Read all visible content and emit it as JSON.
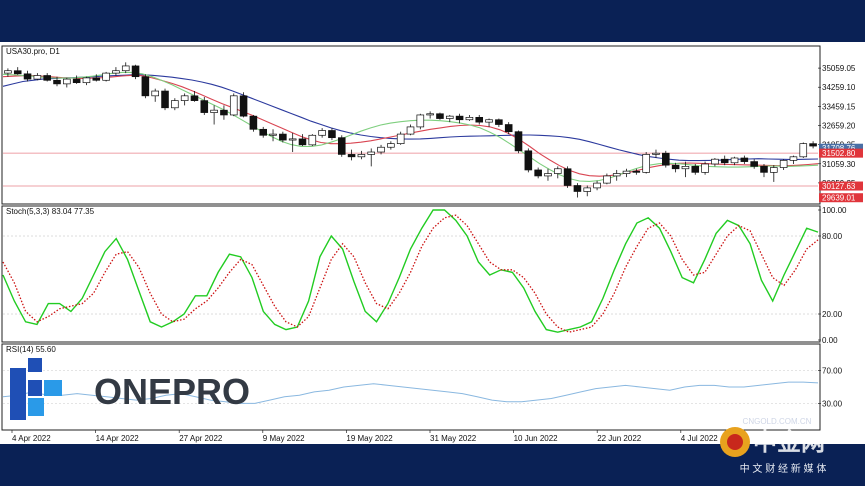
{
  "chart_data": [
    {
      "type": "candlestick",
      "title": "USA30.pro, D1",
      "x_labels": [
        "4 Apr 2022",
        "14 Apr 2022",
        "27 Apr 2022",
        "9 May 2022",
        "19 May 2022",
        "31 May 2022",
        "10 Jun 2022",
        "22 Jun 2022",
        "4 Jul 2022"
      ],
      "y_ticks": [
        35059.05,
        34259.1,
        33459.15,
        32659.2,
        31859.25,
        31059.3,
        30259.35
      ],
      "ylim": [
        29460,
        35900
      ],
      "price_tags": [
        {
          "label": "31708.76",
          "value": 31708.76,
          "color": "#4a6fa5"
        },
        {
          "label": "31502.80",
          "value": 31502.8,
          "color": "#e0353b"
        },
        {
          "label": "30127.63",
          "value": 30127.63,
          "color": "#e0353b"
        },
        {
          "label": "29639.01",
          "value": 29639.01,
          "color": "#e0353b"
        }
      ],
      "horizontal_lines": [
        31502.8,
        30127.63
      ],
      "candles": [
        {
          "o": 34850,
          "h": 35050,
          "l": 34700,
          "c": 34950
        },
        {
          "o": 34950,
          "h": 35100,
          "l": 34780,
          "c": 34820
        },
        {
          "o": 34820,
          "h": 34950,
          "l": 34500,
          "c": 34600
        },
        {
          "o": 34600,
          "h": 34850,
          "l": 34550,
          "c": 34750
        },
        {
          "o": 34750,
          "h": 34850,
          "l": 34500,
          "c": 34550
        },
        {
          "o": 34550,
          "h": 34700,
          "l": 34300,
          "c": 34400
        },
        {
          "o": 34400,
          "h": 34650,
          "l": 34250,
          "c": 34600
        },
        {
          "o": 34600,
          "h": 34750,
          "l": 34400,
          "c": 34450
        },
        {
          "o": 34450,
          "h": 34700,
          "l": 34350,
          "c": 34650
        },
        {
          "o": 34650,
          "h": 34800,
          "l": 34500,
          "c": 34550
        },
        {
          "o": 34550,
          "h": 34900,
          "l": 34500,
          "c": 34850
        },
        {
          "o": 34850,
          "h": 35100,
          "l": 34750,
          "c": 34950
        },
        {
          "o": 34950,
          "h": 35300,
          "l": 34850,
          "c": 35150
        },
        {
          "o": 35150,
          "h": 35200,
          "l": 34600,
          "c": 34700
        },
        {
          "o": 34700,
          "h": 34800,
          "l": 33800,
          "c": 33900
        },
        {
          "o": 33900,
          "h": 34200,
          "l": 33650,
          "c": 34100
        },
        {
          "o": 34100,
          "h": 34200,
          "l": 33300,
          "c": 33400
        },
        {
          "o": 33400,
          "h": 33800,
          "l": 33300,
          "c": 33700
        },
        {
          "o": 33700,
          "h": 34000,
          "l": 33500,
          "c": 33900
        },
        {
          "o": 33900,
          "h": 34100,
          "l": 33650,
          "c": 33700
        },
        {
          "o": 33700,
          "h": 33850,
          "l": 33100,
          "c": 33200
        },
        {
          "o": 33200,
          "h": 33500,
          "l": 32700,
          "c": 33300
        },
        {
          "o": 33300,
          "h": 33500,
          "l": 32900,
          "c": 33100
        },
        {
          "o": 33100,
          "h": 34000,
          "l": 33050,
          "c": 33900
        },
        {
          "o": 33900,
          "h": 34050,
          "l": 33000,
          "c": 33050
        },
        {
          "o": 33050,
          "h": 33100,
          "l": 32400,
          "c": 32500
        },
        {
          "o": 32500,
          "h": 32600,
          "l": 32150,
          "c": 32250
        },
        {
          "o": 32250,
          "h": 32500,
          "l": 32000,
          "c": 32300
        },
        {
          "o": 32300,
          "h": 32400,
          "l": 31950,
          "c": 32050
        },
        {
          "o": 32050,
          "h": 32350,
          "l": 31550,
          "c": 32100
        },
        {
          "o": 32100,
          "h": 32300,
          "l": 31800,
          "c": 31850
        },
        {
          "o": 31850,
          "h": 32300,
          "l": 31800,
          "c": 32250
        },
        {
          "o": 32250,
          "h": 32550,
          "l": 32150,
          "c": 32450
        },
        {
          "o": 32450,
          "h": 32550,
          "l": 32050,
          "c": 32150
        },
        {
          "o": 32150,
          "h": 32250,
          "l": 31350,
          "c": 31450
        },
        {
          "o": 31450,
          "h": 31650,
          "l": 31200,
          "c": 31350
        },
        {
          "o": 31350,
          "h": 31600,
          "l": 31250,
          "c": 31450
        },
        {
          "o": 31450,
          "h": 31700,
          "l": 30950,
          "c": 31550
        },
        {
          "o": 31550,
          "h": 31850,
          "l": 31450,
          "c": 31750
        },
        {
          "o": 31750,
          "h": 32000,
          "l": 31650,
          "c": 31900
        },
        {
          "o": 31900,
          "h": 32400,
          "l": 31850,
          "c": 32300
        },
        {
          "o": 32300,
          "h": 32700,
          "l": 32250,
          "c": 32600
        },
        {
          "o": 32600,
          "h": 33150,
          "l": 32500,
          "c": 33100
        },
        {
          "o": 33100,
          "h": 33250,
          "l": 32950,
          "c": 33150
        },
        {
          "o": 33150,
          "h": 33200,
          "l": 32900,
          "c": 32950
        },
        {
          "o": 32950,
          "h": 33100,
          "l": 32800,
          "c": 33050
        },
        {
          "o": 33050,
          "h": 33150,
          "l": 32750,
          "c": 32900
        },
        {
          "o": 32900,
          "h": 33100,
          "l": 32850,
          "c": 33000
        },
        {
          "o": 33000,
          "h": 33100,
          "l": 32700,
          "c": 32800
        },
        {
          "o": 32800,
          "h": 32950,
          "l": 32600,
          "c": 32900
        },
        {
          "o": 32900,
          "h": 32950,
          "l": 32600,
          "c": 32700
        },
        {
          "o": 32700,
          "h": 32800,
          "l": 32300,
          "c": 32400
        },
        {
          "o": 32400,
          "h": 32450,
          "l": 31500,
          "c": 31600
        },
        {
          "o": 31600,
          "h": 31700,
          "l": 30700,
          "c": 30800
        },
        {
          "o": 30800,
          "h": 30900,
          "l": 30450,
          "c": 30550
        },
        {
          "o": 30550,
          "h": 30850,
          "l": 30350,
          "c": 30650
        },
        {
          "o": 30650,
          "h": 30950,
          "l": 30450,
          "c": 30850
        },
        {
          "o": 30850,
          "h": 30950,
          "l": 30050,
          "c": 30150
        },
        {
          "o": 30150,
          "h": 30250,
          "l": 29650,
          "c": 29900
        },
        {
          "o": 29900,
          "h": 30150,
          "l": 29700,
          "c": 30050
        },
        {
          "o": 30050,
          "h": 30350,
          "l": 29950,
          "c": 30250
        },
        {
          "o": 30250,
          "h": 30650,
          "l": 30200,
          "c": 30550
        },
        {
          "o": 30550,
          "h": 30800,
          "l": 30350,
          "c": 30650
        },
        {
          "o": 30650,
          "h": 30850,
          "l": 30500,
          "c": 30750
        },
        {
          "o": 30750,
          "h": 30850,
          "l": 30600,
          "c": 30700
        },
        {
          "o": 30700,
          "h": 31550,
          "l": 30650,
          "c": 31450
        },
        {
          "o": 31450,
          "h": 31650,
          "l": 31300,
          "c": 31500
        },
        {
          "o": 31500,
          "h": 31600,
          "l": 30900,
          "c": 31000
        },
        {
          "o": 31000,
          "h": 31100,
          "l": 30700,
          "c": 30850
        },
        {
          "o": 30850,
          "h": 31150,
          "l": 30500,
          "c": 30950
        },
        {
          "o": 30950,
          "h": 31050,
          "l": 30600,
          "c": 30700
        },
        {
          "o": 30700,
          "h": 31150,
          "l": 30600,
          "c": 31050
        },
        {
          "o": 31050,
          "h": 31300,
          "l": 30950,
          "c": 31250
        },
        {
          "o": 31250,
          "h": 31400,
          "l": 31000,
          "c": 31100
        },
        {
          "o": 31100,
          "h": 31350,
          "l": 31000,
          "c": 31300
        },
        {
          "o": 31300,
          "h": 31400,
          "l": 31050,
          "c": 31150
        },
        {
          "o": 31150,
          "h": 31250,
          "l": 30850,
          "c": 30950
        },
        {
          "o": 30950,
          "h": 31050,
          "l": 30500,
          "c": 30700
        },
        {
          "o": 30700,
          "h": 31000,
          "l": 30300,
          "c": 30900
        },
        {
          "o": 30900,
          "h": 31250,
          "l": 30800,
          "c": 31200
        },
        {
          "o": 31200,
          "h": 31400,
          "l": 31050,
          "c": 31350
        },
        {
          "o": 31350,
          "h": 31950,
          "l": 31300,
          "c": 31900
        },
        {
          "o": 31900,
          "h": 32000,
          "l": 31700,
          "c": 31800
        }
      ],
      "series": [
        {
          "name": "",
          "color": "#2c3a9e",
          "values": [
            34300,
            34400,
            34500,
            34550,
            34600,
            34620,
            34650,
            34660,
            34680,
            34700,
            34720,
            34740,
            34760,
            34780,
            34780,
            34760,
            34720,
            34680,
            34620,
            34560,
            34480,
            34380,
            34260,
            34120,
            33960,
            33800,
            33640,
            33480,
            33320,
            33160,
            33000,
            32840,
            32700,
            32560,
            32440,
            32340,
            32260,
            32200,
            32150,
            32120,
            32100,
            32090,
            32100,
            32120,
            32150,
            32180,
            32200,
            32210,
            32220,
            32230,
            32240,
            32250,
            32260,
            32260,
            32250,
            32230,
            32200,
            32150,
            32080,
            31980,
            31870,
            31750,
            31640,
            31540,
            31440,
            31360,
            31300,
            31250,
            31210,
            31190,
            31190,
            31200,
            31210,
            31230,
            31250,
            31260,
            31270,
            31260,
            31250,
            31240,
            31240,
            31250,
            31260
          ]
        },
        {
          "name": "",
          "color": "#d94552",
          "values": [
            34700,
            34720,
            34740,
            34740,
            34720,
            34690,
            34660,
            34640,
            34630,
            34640,
            34660,
            34690,
            34730,
            34760,
            34740,
            34650,
            34540,
            34420,
            34280,
            34120,
            33940,
            33760,
            33580,
            33420,
            33260,
            33100,
            32920,
            32740,
            32560,
            32380,
            32200,
            32060,
            31950,
            31900,
            31900,
            31920,
            31960,
            32020,
            32100,
            32180,
            32260,
            32340,
            32420,
            32500,
            32560,
            32620,
            32660,
            32680,
            32660,
            32600,
            32480,
            32300,
            32060,
            31780,
            31480,
            31220,
            30980,
            30780,
            30640,
            30560,
            30540,
            30560,
            30620,
            30700,
            30800,
            30900,
            30980,
            31040,
            31080,
            31090,
            31080,
            31060,
            31040,
            31030,
            31020,
            31010,
            31000,
            30990,
            30980,
            30980,
            31000,
            31030,
            31060
          ]
        },
        {
          "name": "",
          "color": "#7fcf7f",
          "values": [
            34800,
            34780,
            34750,
            34720,
            34680,
            34650,
            34640,
            34650,
            34680,
            34720,
            34780,
            34840,
            34880,
            34880,
            34820,
            34700,
            34540,
            34360,
            34160,
            33960,
            33760,
            33560,
            33360,
            33140,
            32900,
            32660,
            32420,
            32200,
            32000,
            31860,
            31780,
            31780,
            31840,
            31960,
            32100,
            32260,
            32420,
            32560,
            32680,
            32760,
            32820,
            32860,
            32880,
            32880,
            32860,
            32820,
            32760,
            32680,
            32560,
            32380,
            32160,
            31900,
            31620,
            31340,
            31060,
            30820,
            30600,
            30440,
            30340,
            30320,
            30360,
            30460,
            30600,
            30760,
            30900,
            31000,
            31060,
            31080,
            31060,
            31020,
            30980,
            30950,
            30930,
            30920,
            30920,
            30930,
            30950,
            30960,
            30960,
            30950,
            30960,
            30980,
            31000
          ]
        }
      ]
    },
    {
      "type": "line",
      "title": "Stoch(5,3,3) 83.04 77.35",
      "y_ticks": [
        100.0,
        80.0,
        20.0,
        0.0
      ],
      "ylim": [
        0,
        100
      ],
      "series": [
        {
          "name": "",
          "color": "#22cc22",
          "values": [
            50,
            30,
            14,
            12,
            28,
            28,
            22,
            32,
            50,
            68,
            78,
            62,
            38,
            14,
            10,
            14,
            20,
            34,
            34,
            52,
            66,
            64,
            48,
            22,
            12,
            8,
            10,
            30,
            64,
            80,
            70,
            45,
            22,
            14,
            28,
            48,
            70,
            86,
            100,
            100,
            92,
            80,
            60,
            50,
            54,
            52,
            40,
            22,
            8,
            6,
            8,
            10,
            14,
            32,
            54,
            74,
            90,
            94,
            86,
            68,
            48,
            44,
            62,
            82,
            92,
            88,
            74,
            46,
            30,
            50,
            68,
            86,
            83
          ]
        },
        {
          "name": "",
          "color": "#cc1111",
          "style": "dotted",
          "values": [
            60,
            44,
            22,
            14,
            18,
            24,
            26,
            28,
            36,
            52,
            66,
            68,
            56,
            36,
            20,
            14,
            16,
            24,
            30,
            40,
            52,
            62,
            58,
            42,
            26,
            14,
            10,
            18,
            40,
            62,
            74,
            64,
            44,
            28,
            24,
            36,
            52,
            72,
            86,
            94,
            96,
            88,
            74,
            60,
            54,
            54,
            48,
            36,
            20,
            10,
            6,
            8,
            10,
            20,
            36,
            56,
            72,
            86,
            90,
            80,
            62,
            50,
            52,
            66,
            80,
            88,
            84,
            66,
            48,
            42,
            54,
            70,
            77
          ]
        }
      ]
    },
    {
      "type": "line",
      "title": "RSI(14) 55.60",
      "y_ticks": [
        70.0,
        30.0
      ],
      "ylim": [
        0,
        100
      ],
      "series": [
        {
          "name": "",
          "color": "#8ab8e0",
          "values": [
            38,
            40,
            44,
            40,
            40,
            42,
            40,
            38,
            36,
            34,
            36,
            40,
            42,
            38,
            34,
            32,
            30,
            30,
            34,
            38,
            40,
            44,
            46,
            50,
            52,
            54,
            52,
            50,
            48,
            46,
            44,
            42,
            38,
            34,
            32,
            32,
            34,
            36,
            40,
            44,
            48,
            50,
            52,
            50,
            48,
            46,
            50,
            52,
            52,
            50,
            50,
            52,
            54,
            56,
            56,
            55
          ]
        }
      ]
    }
  ],
  "branding": {
    "onepro_text": "ONEPRO",
    "cngold_domain": "CNGOLD.COM.CN",
    "cngold_name": "中金网",
    "cngold_tagline": "中 文 财 经 新 媒 体"
  }
}
